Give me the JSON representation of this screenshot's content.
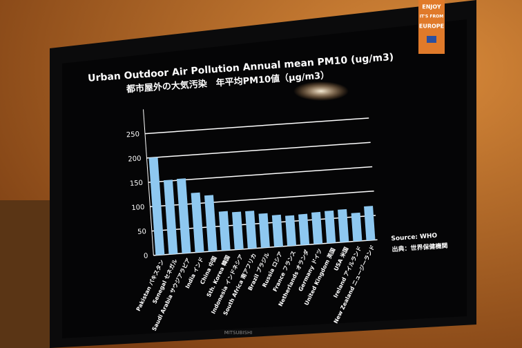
{
  "chart_data": {
    "type": "bar",
    "title": "Urban Outdoor Air Pollution Annual mean PM10 (ug/m3)",
    "subtitle": "都市屋外の大気汚染　年平均PM10値（μg/m3）",
    "categories": [
      "Pakistan パキスタン",
      "Senegal セネガル",
      "Saudi Arabia サウジアラビア",
      "India インド",
      "China 中国",
      "Sth. Korea 韓国",
      "Indonesia インドネシア",
      "South Africa 南アフリカ",
      "Brazil ブラジル",
      "Russia ロシア",
      "France フランス",
      "Netherlands オランダ",
      "Germany ドイツ",
      "United Kingdom 英国",
      "USA 米国",
      "Ireland アイルランド",
      "New Zealand ニュージーランド"
    ],
    "values": [
      200,
      152,
      153,
      122,
      115,
      80,
      77,
      77,
      70,
      65,
      62,
      63,
      65,
      66,
      67,
      58,
      70
    ],
    "color": "#8ec8f0",
    "ylim": [
      0,
      300
    ],
    "yticks": [
      0,
      50,
      100,
      150,
      200,
      250
    ],
    "grid": true,
    "source": "Source: WHO",
    "source_ja": "出典：世界保健機関"
  },
  "logo": [
    "ENJOY",
    "IT'S FROM",
    "EUROPE"
  ],
  "brand": "MITSUBISHI"
}
